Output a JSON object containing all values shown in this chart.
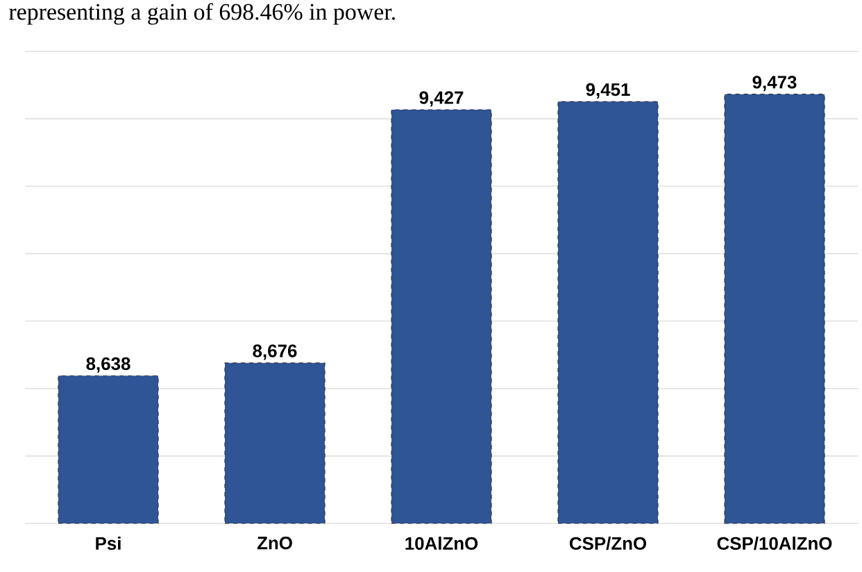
{
  "chart_data": {
    "type": "bar",
    "categories": [
      "Psi",
      "ZnO",
      "10AlZnO",
      "CSP/ZnO",
      "CSP/10AlZnO"
    ],
    "values": [
      8638,
      8676,
      9427,
      9451,
      9473
    ],
    "value_labels": [
      "8,638",
      "8,676",
      "9,427",
      "9,451",
      "9,473"
    ],
    "color": "#2f5597",
    "ylim": [
      8200,
      9600
    ],
    "yticks": [
      {
        "value": 8200,
        "label": null
      },
      {
        "value": 8400,
        "label": null
      },
      {
        "value": 8600,
        "label": null
      },
      {
        "value": 8800,
        "label": null
      },
      {
        "value": 9000,
        "label": null
      },
      {
        "value": 9200,
        "label": null
      },
      {
        "value": 9400,
        "label": null
      },
      {
        "value": 9600,
        "label": null
      }
    ],
    "tick_labels": "x",
    "grid": "y",
    "annotations": [
      "representing a gain of 698.46% in power."
    ]
  }
}
